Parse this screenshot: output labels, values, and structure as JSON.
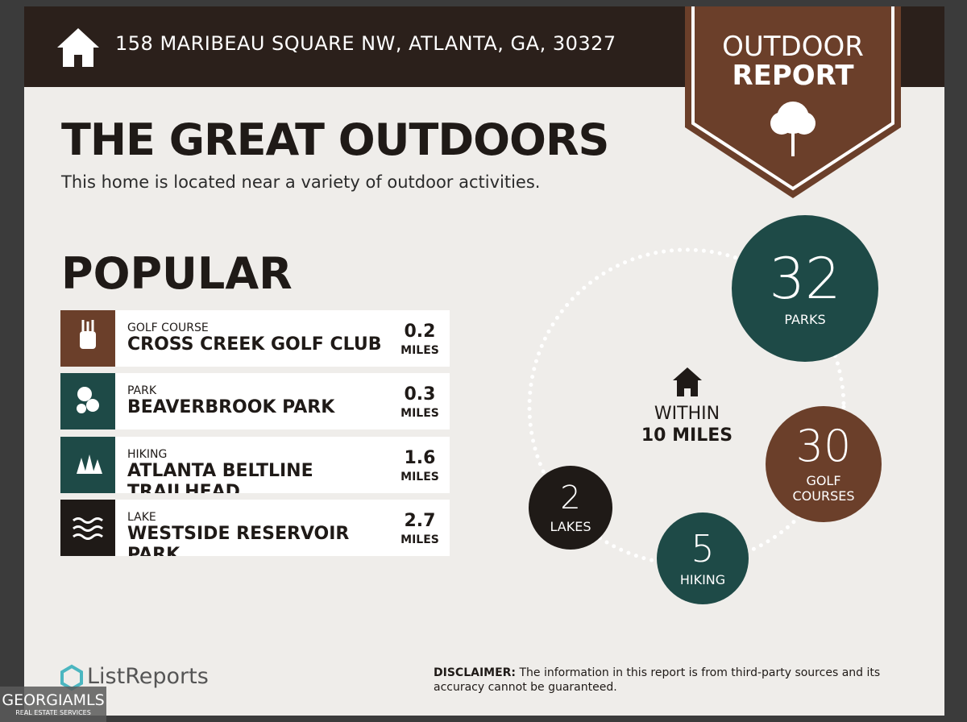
{
  "header": {
    "address": "158 MARIBEAU SQUARE NW, ATLANTA, GA, 30327"
  },
  "badge": {
    "line1": "OUTDOOR",
    "line2": "REPORT"
  },
  "title": "THE GREAT OUTDOORS",
  "subtitle": "This home is located near a variety of outdoor activities.",
  "popular": {
    "heading": "POPULAR",
    "items": [
      {
        "category": "GOLF COURSE",
        "name": "CROSS CREEK GOLF CLUB",
        "distance": 0.2,
        "unit": "MILES"
      },
      {
        "category": "PARK",
        "name": "BEAVERBROOK PARK",
        "distance": 0.3,
        "unit": "MILES"
      },
      {
        "category": "HIKING",
        "name": "ATLANTA BELTLINE TRAILHEAD",
        "distance": 1.6,
        "unit": "MILES"
      },
      {
        "category": "LAKE",
        "name": "WESTSIDE RESERVOIR PARK",
        "distance": 2.7,
        "unit": "MILES"
      }
    ]
  },
  "summary": {
    "within": "WITHIN",
    "radius": "10 MILES",
    "circles": [
      {
        "count": 32,
        "label": "PARKS"
      },
      {
        "count": 30,
        "label": "GOLF COURSES"
      },
      {
        "count": 5,
        "label": "HIKING"
      },
      {
        "count": 2,
        "label": "LAKES"
      }
    ]
  },
  "footer": {
    "brand": "ListReports",
    "disclaimer_label": "DISCLAIMER:",
    "disclaimer": "The information in this report is from third-party sources and its accuracy cannot be guaranteed.",
    "watermark": "GEORGIAMLS",
    "watermark_sub": "REAL ESTATE SERVICES"
  }
}
